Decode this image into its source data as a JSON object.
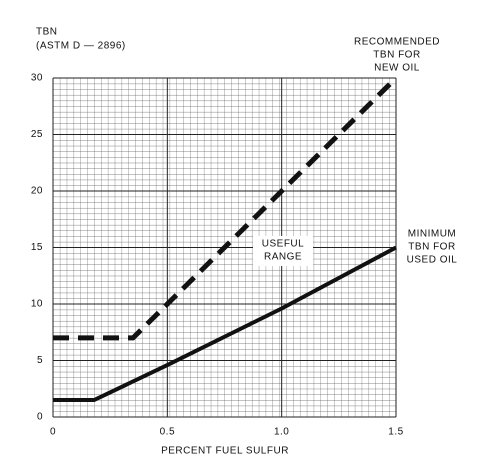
{
  "chart_data": {
    "type": "line",
    "y_label": [
      "TBN",
      "(ASTM D — 2896)"
    ],
    "x_label": "PERCENT FUEL SULFUR",
    "series": [
      {
        "x": [
          0,
          0.35,
          1.5
        ],
        "values": [
          7,
          7,
          30
        ],
        "color": "#111111",
        "dashed": true
      },
      {
        "x": [
          0,
          0.18,
          0.5,
          1.0,
          1.5
        ],
        "values": [
          1.5,
          1.5,
          4.6,
          9.6,
          15
        ],
        "color": "#111111",
        "dashed": false
      }
    ],
    "annotations": [
      {
        "lines": [
          "RECOMMENDED",
          "TBN FOR",
          "NEW OIL"
        ]
      },
      {
        "lines": [
          "USEFUL",
          "RANGE"
        ]
      },
      {
        "lines": [
          "MINIMUM",
          "TBN FOR",
          "USED OIL"
        ]
      }
    ],
    "xlim": [
      0,
      1.5
    ],
    "xticks": [
      0,
      0.5,
      {
        "value": 1,
        "label": "1.0"
      },
      1.5
    ],
    "ylim": [
      0,
      30
    ],
    "yticks": [
      0,
      5,
      10,
      15,
      20,
      25,
      30
    ],
    "grid": true
  }
}
